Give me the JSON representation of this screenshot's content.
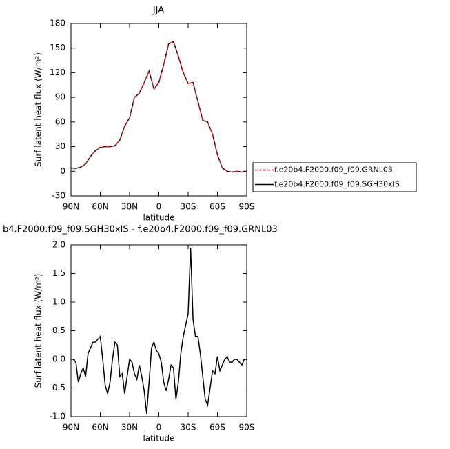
{
  "chart_data": [
    {
      "type": "line",
      "title": "JJA",
      "xlabel": "latitude",
      "ylabel": "Surf latent heat flux (W/m²)",
      "x": [
        90,
        85,
        80,
        75,
        70,
        65,
        60,
        55,
        50,
        45,
        40,
        35,
        30,
        25,
        20,
        15,
        10,
        5,
        0,
        -5,
        -10,
        -15,
        -20,
        -25,
        -30,
        -35,
        -40,
        -45,
        -50,
        -55,
        -60,
        -65,
        -70,
        -75,
        -80,
        -85,
        -90
      ],
      "series": [
        {
          "name": "f.e20b4.F2000.f09_f09.GRNL03",
          "color": "#e02020",
          "linestyle": "dashed",
          "values": [
            4,
            3.5,
            5,
            9,
            18,
            25,
            29,
            30,
            30,
            31,
            38,
            55,
            65,
            90,
            95,
            108,
            122,
            100,
            108,
            130,
            155,
            158,
            140,
            120,
            107,
            108,
            85,
            62,
            60,
            45,
            20,
            4,
            0,
            -1,
            0,
            -1,
            0
          ]
        },
        {
          "name": "f.e20b4.F2000.f09_f09.SGH30xIS",
          "color": "#000000",
          "linestyle": "solid",
          "values": [
            4,
            3.5,
            5,
            9,
            18,
            25,
            29,
            30,
            30,
            31,
            38,
            55,
            65,
            90,
            95,
            108,
            122,
            100,
            108,
            130,
            155,
            158,
            140,
            120,
            107,
            108,
            85,
            62,
            60,
            45,
            20,
            4,
            0,
            -1,
            0,
            -1,
            0
          ]
        }
      ],
      "xlim": [
        90,
        -90
      ],
      "xticks": [
        {
          "value": 90,
          "label": "90N"
        },
        {
          "value": 60,
          "label": "60N"
        },
        {
          "value": 30,
          "label": "30N"
        },
        0,
        {
          "value": -30,
          "label": "30S"
        },
        {
          "value": -60,
          "label": "60S"
        },
        {
          "value": -90,
          "label": "90S"
        }
      ],
      "ylim": [
        -30,
        180
      ],
      "yticks": [
        -30,
        0,
        30,
        60,
        90,
        120,
        150,
        180
      ],
      "legend": "right"
    },
    {
      "type": "line",
      "title": "b4.F2000.f09_f09.SGH30xIS - f.e20b4.F2000.f09_f09.GRNL03",
      "xlabel": "latitude",
      "ylabel": "Surf latent heat flux (W/m²)",
      "x": [
        90,
        87.5,
        85,
        82.5,
        80,
        77.5,
        75,
        72.5,
        70,
        67.5,
        65,
        62.5,
        60,
        57.5,
        55,
        52.5,
        50,
        47.5,
        45,
        42.5,
        40,
        37.5,
        35,
        32.5,
        30,
        27.5,
        25,
        22.5,
        20,
        17.5,
        15,
        12.5,
        10,
        7.5,
        5,
        2.5,
        0,
        -2.5,
        -5,
        -7.5,
        -10,
        -12.5,
        -15,
        -17.5,
        -20,
        -22.5,
        -25,
        -27.5,
        -30,
        -32.5,
        -35,
        -37.5,
        -40,
        -42.5,
        -45,
        -47.5,
        -50,
        -52.5,
        -55,
        -57.5,
        -60,
        -62.5,
        -65,
        -67.5,
        -70,
        -72.5,
        -75,
        -77.5,
        -80,
        -82.5,
        -85,
        -87.5,
        -90
      ],
      "series": [
        {
          "color": "#000000",
          "linestyle": "solid",
          "values": [
            0,
            0,
            -0.05,
            -0.4,
            -0.25,
            -0.15,
            -0.3,
            0.1,
            0.2,
            0.3,
            0.3,
            0.35,
            0.4,
            0,
            -0.45,
            -0.6,
            -0.4,
            0,
            0.3,
            0.25,
            -0.3,
            -0.25,
            -0.6,
            -0.3,
            0,
            -0.05,
            -0.25,
            -0.35,
            -0.1,
            -0.3,
            -0.55,
            -0.95,
            -0.4,
            0.2,
            0.3,
            0.15,
            0.1,
            -0.05,
            -0.4,
            -0.55,
            -0.35,
            -0.1,
            -0.15,
            -0.7,
            -0.4,
            0.1,
            0.4,
            0.6,
            0.8,
            1.95,
            0.7,
            0.4,
            0.4,
            0.1,
            -0.3,
            -0.7,
            -0.8,
            -0.5,
            -0.2,
            -0.25,
            0.05,
            -0.2,
            -0.1,
            0,
            0.05,
            -0.05,
            -0.05,
            0,
            0,
            -0.05,
            -0.1,
            0,
            0
          ]
        }
      ],
      "xlim": [
        90,
        -90
      ],
      "xticks": [
        {
          "value": 90,
          "label": "90N"
        },
        {
          "value": 60,
          "label": "60N"
        },
        {
          "value": 30,
          "label": "30N"
        },
        0,
        {
          "value": -30,
          "label": "30S"
        },
        {
          "value": -60,
          "label": "60S"
        },
        {
          "value": -90,
          "label": "90S"
        }
      ],
      "ylim": [
        -1,
        2
      ],
      "yticks": [
        {
          "value": -1,
          "label": "-1.0"
        },
        -0.5,
        {
          "value": 0,
          "label": "0.0"
        },
        0.5,
        {
          "value": 1,
          "label": "1.0"
        },
        1.5,
        {
          "value": 2,
          "label": "2.0"
        }
      ]
    }
  ]
}
